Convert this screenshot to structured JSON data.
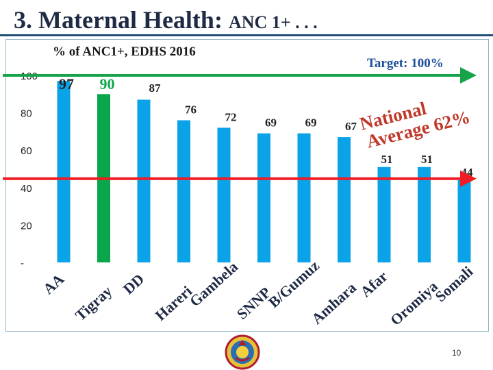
{
  "slide": {
    "title_main": "3. Maternal Health:",
    "title_sub": "ANC 1+ . . .",
    "page_number": "10"
  },
  "colors": {
    "bar": "#0ba3e8",
    "highlight_bar": "#0aa64b",
    "target_arrow": "#16a34a",
    "average_arrow": "#ef1c24",
    "annotation": "#c0392b",
    "target_text": "#1f4e9c"
  },
  "chart_data": {
    "type": "bar",
    "title": "% of ANC1+, EDHS 2016",
    "xlabel": "",
    "ylabel": "",
    "ylim": [
      0,
      100
    ],
    "yticks": [
      0,
      20,
      40,
      60,
      80,
      100
    ],
    "ytick_labels": [
      "-",
      "20",
      "40",
      "60",
      "80",
      "100"
    ],
    "grid": false,
    "categories": [
      "AA",
      "Tigray",
      "DD",
      "Hareri",
      "Gambela",
      "SNNP",
      "B/Gumuz",
      "Amhara",
      "Afar",
      "Oromiya",
      "Somali"
    ],
    "values": [
      97,
      90,
      87,
      76,
      72,
      69,
      69,
      67,
      51,
      51,
      44
    ],
    "data_labels": [
      "97",
      "90",
      "87",
      "76",
      "72",
      "69",
      "69",
      "67",
      "51",
      "51",
      "44"
    ],
    "highlight_index": 1,
    "reference_lines": [
      {
        "label": "Target: 100%",
        "value": 100
      },
      {
        "label": "National Average 62%",
        "label_line1": "National",
        "label_line2": "Average 62%",
        "value": 62
      }
    ]
  }
}
